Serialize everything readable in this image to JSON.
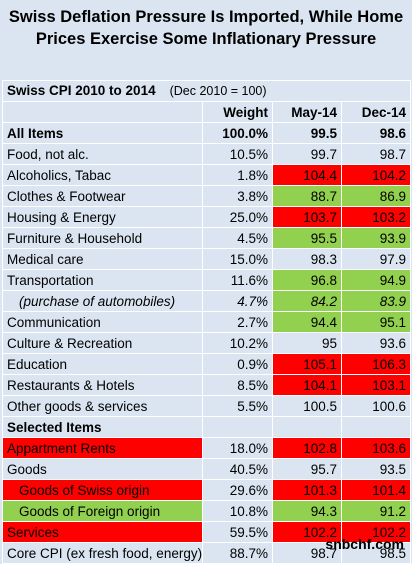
{
  "title_line1": "Swiss Deflation Pressure Is Imported, While Home",
  "title_line2": "Prices Exercise Some Inflationary Pressure",
  "table_title": "Swiss CPI 2010 to 2014",
  "base_note": "(Dec 2010 = 100)",
  "headers": {
    "weight": "Weight",
    "may": "May-14",
    "dec": "Dec-14"
  },
  "rows": [
    {
      "label": "All Items",
      "weight": "100.0%",
      "may": "99.5",
      "dec": "98.6"
    },
    {
      "label": "Food, not alc.",
      "weight": "10.5%",
      "may": "99.7",
      "dec": "98.7"
    },
    {
      "label": "Alcoholics, Tabac",
      "weight": "1.8%",
      "may": "104.4",
      "dec": "104.2"
    },
    {
      "label": "Clothes & Footwear",
      "weight": "3.8%",
      "may": "88.7",
      "dec": "86.9"
    },
    {
      "label": "Housing & Energy",
      "weight": "25.0%",
      "may": "103.7",
      "dec": "103.2"
    },
    {
      "label": "Furniture & Household",
      "weight": "4.5%",
      "may": "95.5",
      "dec": "93.9"
    },
    {
      "label": "Medical care",
      "weight": "15.0%",
      "may": "98.3",
      "dec": "97.9"
    },
    {
      "label": "Transportation",
      "weight": "11.6%",
      "may": "96.8",
      "dec": "94.9"
    },
    {
      "label": "(purchase of automobiles)",
      "weight": "4.7%",
      "may": "84.2",
      "dec": "83.9"
    },
    {
      "label": "Communication",
      "weight": "2.7%",
      "may": "94.4",
      "dec": "95.1"
    },
    {
      "label": "Culture & Recreation",
      "weight": "10.2%",
      "may": "95",
      "dec": "93.6"
    },
    {
      "label": "Education",
      "weight": "0.9%",
      "may": "105.1",
      "dec": "106.3"
    },
    {
      "label": "Restaurants & Hotels",
      "weight": "8.5%",
      "may": "104.1",
      "dec": "103.1"
    },
    {
      "label": "Other goods & services",
      "weight": "5.5%",
      "may": "100.5",
      "dec": "100.6"
    }
  ],
  "selected_header": "Selected Items",
  "selected_rows": [
    {
      "label": "Appartment Rents",
      "weight": "18.0%",
      "may": "102.8",
      "dec": "103.6"
    },
    {
      "label": "Goods",
      "weight": "40.5%",
      "may": "95.7",
      "dec": "93.5"
    },
    {
      "label": "Goods of Swiss origin",
      "weight": "29.6%",
      "may": "101.3",
      "dec": "101.4"
    },
    {
      "label": "Goods of Foreign origin",
      "weight": "10.8%",
      "may": "94.3",
      "dec": "91.2"
    },
    {
      "label": "Services",
      "weight": "59.5%",
      "may": "102.2",
      "dec": "102.2"
    },
    {
      "label": "Core CPI (ex fresh food, energy)",
      "weight": "88.7%",
      "may": "98.7",
      "dec": "98.5"
    }
  ],
  "source": "snbchf.com",
  "colors": {
    "red": "#ff0000",
    "green": "#92d050",
    "background": "#dbe5f1"
  }
}
